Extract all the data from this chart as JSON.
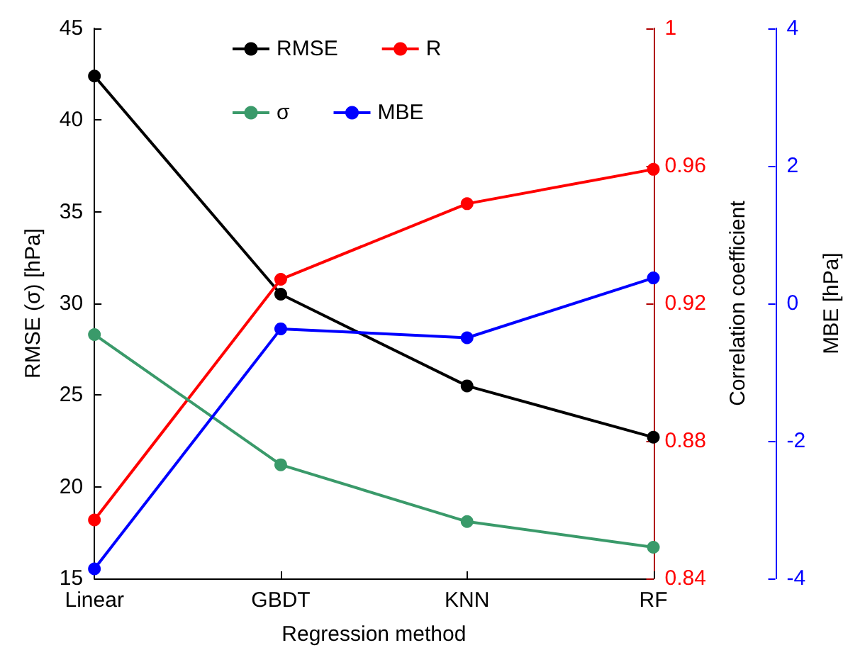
{
  "chart_data": {
    "type": "line",
    "xlabel": "Regression method",
    "ylabel": "RMSE (σ) [hPa]",
    "y2label": "Correlation coefficient",
    "y3label": "MBE [hPa]",
    "categories": [
      "Linear",
      "GBDT",
      "KNN",
      "RF"
    ],
    "series": [
      {
        "name": "RMSE",
        "color": "#000000",
        "values": [
          42.4,
          30.5,
          25.5,
          22.7
        ]
      },
      {
        "name": "R",
        "color": "#ff0000",
        "axis": "y2",
        "values": [
          0.857,
          0.927,
          0.949,
          0.959
        ]
      },
      {
        "name": "σ",
        "color": "#3a9a6a",
        "values": [
          28.3,
          21.2,
          18.1,
          16.7
        ]
      },
      {
        "name": "MBE",
        "color": "#0000ff",
        "axis": "y3",
        "values": [
          -3.86,
          -0.37,
          -0.5,
          0.37
        ]
      }
    ],
    "ylim": [
      15,
      45
    ],
    "yticks": [
      15,
      20,
      25,
      30,
      35,
      40,
      45
    ],
    "y2lim": [
      0.84,
      1
    ],
    "y2ticks": [
      0.84,
      0.88,
      0.92,
      0.96,
      1
    ],
    "y3lim": [
      -4,
      4
    ],
    "y3ticks": [
      -4,
      -2,
      0,
      2,
      4
    ],
    "legend": "top",
    "marker": "circle",
    "line_style": "solid",
    "grid": false
  }
}
